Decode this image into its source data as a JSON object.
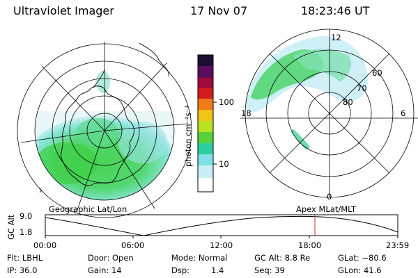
{
  "header": {
    "instrument": "Ultraviolet Imager",
    "date": "17 Nov 07",
    "time": "18:23:46 UT"
  },
  "left_map": {
    "label": "Geographic Lat/Lon"
  },
  "right_map": {
    "label": "Apex  MLat/MLT",
    "mlt_labels": {
      "top": "12",
      "left": "18",
      "right": "6",
      "bottom": "0"
    },
    "mlat_labels": [
      "60",
      "70",
      "80"
    ]
  },
  "colorbar": {
    "unit": "photon cm⁻²s⁻¹",
    "ticks": [
      "100",
      "10"
    ],
    "colors": [
      "#1b0f33",
      "#5a0d5e",
      "#a00a3b",
      "#d41c1c",
      "#f27b18",
      "#f2c317",
      "#b7e320",
      "#55d23c",
      "#2ccfa0",
      "#7fe0e8",
      "#c9eef5",
      "#ffffff"
    ]
  },
  "altitude_plot": {
    "ylabel": "GC Alt",
    "yticks": [
      "9.0",
      "1.8"
    ],
    "xticks": [
      "00:00",
      "06:00",
      "12:00",
      "18:00",
      "23:59"
    ],
    "marker_color": "#c8281e"
  },
  "footer": {
    "row1": {
      "filter": "Flt: LBHL",
      "door": "Door: Open",
      "mode": "Mode: Normal",
      "gc_alt": "GC Alt: 8.8 Re",
      "glat": "GLat: −80.6"
    },
    "row2": {
      "ip": "IP: 36.0",
      "gain": "Gain: 14",
      "dsp_label": "Dsp:",
      "dsp_value": "1.4",
      "seq": "Seq: 39",
      "glon": "GLon:  41.6"
    }
  }
}
